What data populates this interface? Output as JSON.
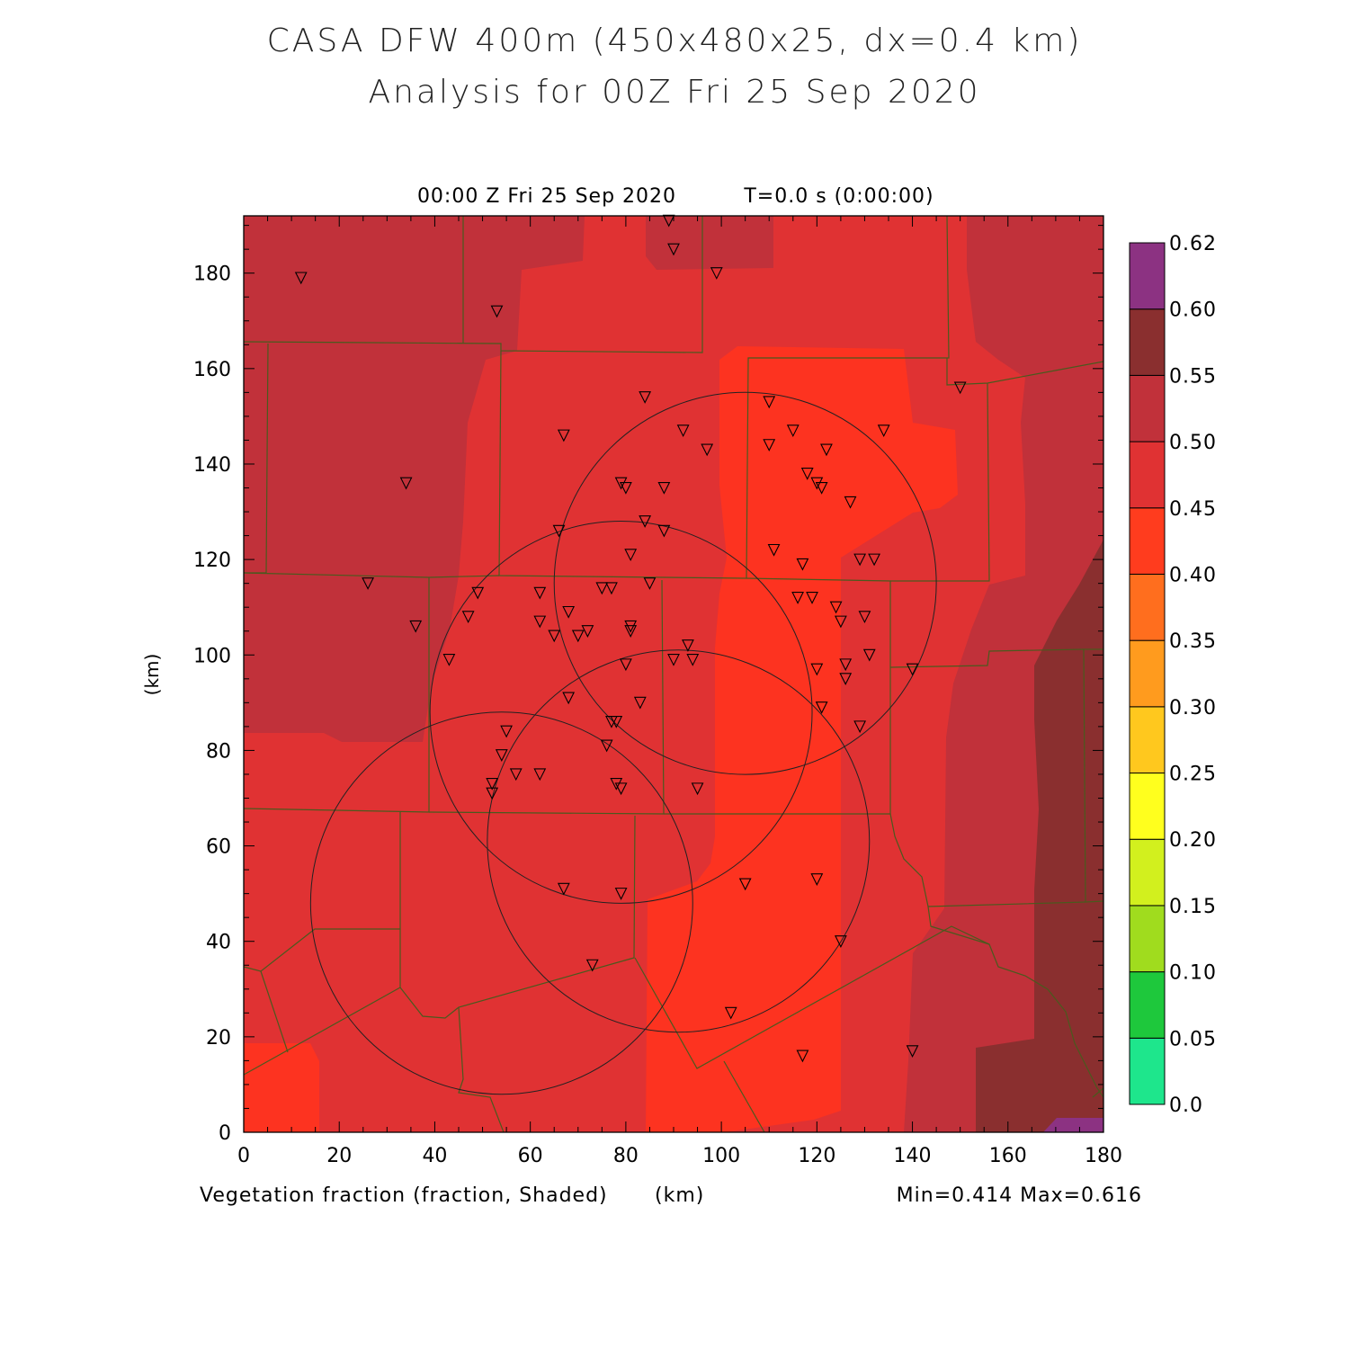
{
  "title": {
    "line1": "CASA DFW 400m (450x480x25, dx=0.4 km)",
    "line2": "Analysis for 00Z Fri 25 Sep 2020"
  },
  "plot": {
    "time_label": "00:00 Z Fri 25 Sep 2020",
    "t_label": "T=0.0 s (0:00:00)",
    "field_label": "Vegetation fraction (fraction, Shaded)",
    "x_unit": "(km)",
    "minmax": "Min=0.414 Max=0.616"
  },
  "colors": {
    "background_field": "#e03233",
    "darker_field": "#c1313a",
    "darkest_field": "#8a2f2f",
    "lighter_field": "#fd3320",
    "border_line": "#4a5a1e",
    "circle_line": "#222222"
  },
  "chart_data": {
    "type": "heatmap",
    "title": "",
    "xlabel": "(km)",
    "ylabel": "(km)",
    "xlim": [
      0,
      180
    ],
    "ylim": [
      0,
      192
    ],
    "x_ticks": [
      "0",
      "20",
      "40",
      "60",
      "80",
      "100",
      "120",
      "140",
      "160",
      "180"
    ],
    "y_ticks": [
      "0",
      "20",
      "40",
      "60",
      "80",
      "100",
      "120",
      "140",
      "160",
      "180"
    ],
    "colorbar": {
      "levels": [
        "0.0",
        "0.05",
        "0.10",
        "0.15",
        "0.20",
        "0.25",
        "0.30",
        "0.35",
        "0.40",
        "0.45",
        "0.50",
        "0.55",
        "0.60",
        "0.62"
      ],
      "colors": [
        "#1ee68c",
        "#1ec83c",
        "#a0dc1e",
        "#d2f01e",
        "#ffff1e",
        "#ffc81e",
        "#ff9b1e",
        "#ff6e1e",
        "#ff3c1e",
        "#e03233",
        "#c1313a",
        "#8a2f2f",
        "#8c3282"
      ]
    },
    "radar_circles": [
      {
        "cx": 105,
        "cy": 115,
        "r": 40
      },
      {
        "cx": 79,
        "cy": 88,
        "r": 40
      },
      {
        "cx": 91,
        "cy": 61,
        "r": 40
      },
      {
        "cx": 54,
        "cy": 48,
        "r": 40
      }
    ],
    "stations": [
      [
        12,
        179
      ],
      [
        53,
        172
      ],
      [
        89,
        191
      ],
      [
        90,
        185
      ],
      [
        99,
        180
      ],
      [
        34,
        136
      ],
      [
        67,
        146
      ],
      [
        84,
        154
      ],
      [
        92,
        147
      ],
      [
        97,
        143
      ],
      [
        110,
        153
      ],
      [
        115,
        147
      ],
      [
        110,
        144
      ],
      [
        118,
        138
      ],
      [
        122,
        143
      ],
      [
        127,
        132
      ],
      [
        134,
        147
      ],
      [
        150,
        156
      ],
      [
        79,
        136
      ],
      [
        80,
        135
      ],
      [
        88,
        135
      ],
      [
        84,
        128
      ],
      [
        88,
        126
      ],
      [
        66,
        126
      ],
      [
        62,
        113
      ],
      [
        49,
        113
      ],
      [
        47,
        108
      ],
      [
        36,
        106
      ],
      [
        26,
        115
      ],
      [
        43,
        99
      ],
      [
        62,
        107
      ],
      [
        65,
        104
      ],
      [
        68,
        109
      ],
      [
        70,
        104
      ],
      [
        72,
        105
      ],
      [
        75,
        114
      ],
      [
        77,
        114
      ],
      [
        81,
        106
      ],
      [
        81,
        105
      ],
      [
        85,
        115
      ],
      [
        81,
        121
      ],
      [
        93,
        102
      ],
      [
        90,
        99
      ],
      [
        94,
        99
      ],
      [
        80,
        98
      ],
      [
        83,
        90
      ],
      [
        111,
        122
      ],
      [
        117,
        119
      ],
      [
        120,
        136
      ],
      [
        121,
        135
      ],
      [
        129,
        120
      ],
      [
        132,
        120
      ],
      [
        116,
        112
      ],
      [
        119,
        112
      ],
      [
        124,
        110
      ],
      [
        125,
        107
      ],
      [
        130,
        108
      ],
      [
        131,
        100
      ],
      [
        120,
        97
      ],
      [
        126,
        98
      ],
      [
        126,
        95
      ],
      [
        129,
        85
      ],
      [
        140,
        97
      ],
      [
        121,
        89
      ],
      [
        68,
        91
      ],
      [
        77,
        86
      ],
      [
        78,
        86
      ],
      [
        76,
        81
      ],
      [
        55,
        84
      ],
      [
        54,
        79
      ],
      [
        57,
        75
      ],
      [
        62,
        75
      ],
      [
        52,
        73
      ],
      [
        52,
        71
      ],
      [
        78,
        73
      ],
      [
        79,
        72
      ],
      [
        95,
        72
      ],
      [
        67,
        51
      ],
      [
        79,
        50
      ],
      [
        105,
        52
      ],
      [
        120,
        53
      ],
      [
        125,
        40
      ],
      [
        73,
        35
      ],
      [
        102,
        25
      ],
      [
        117,
        16
      ],
      [
        140,
        17
      ]
    ]
  }
}
